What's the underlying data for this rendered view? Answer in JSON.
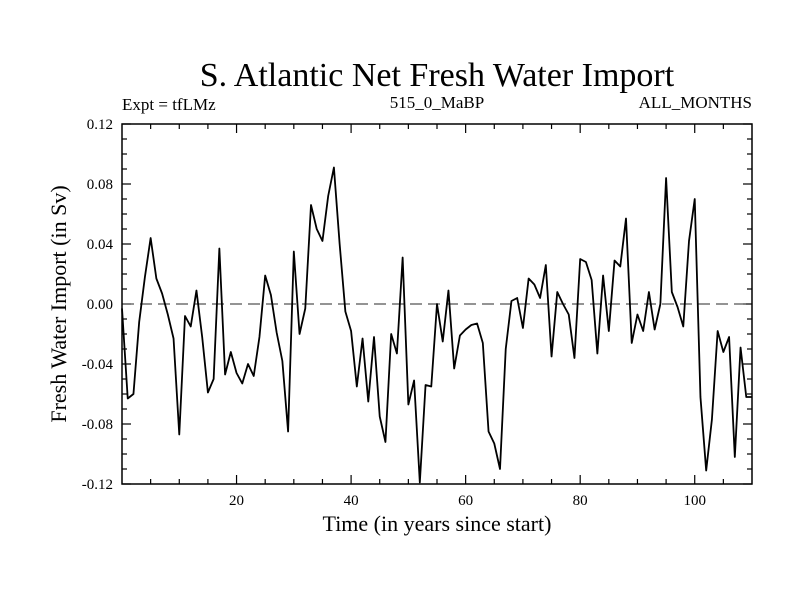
{
  "chart_data": {
    "type": "line",
    "title": "S. Atlantic Net Fresh Water Import",
    "subtitle_left": "Expt = tfLMz",
    "subtitle_center": "515_0_MaBP",
    "subtitle_right": "ALL_MONTHS",
    "xlabel": "Time (in years since start)",
    "ylabel": "Fresh Water Import (in Sv)",
    "xlim": [
      0,
      110
    ],
    "ylim": [
      -0.12,
      0.12
    ],
    "xticks": [
      20,
      40,
      60,
      80,
      100
    ],
    "xtick_labels": [
      "20",
      "40",
      "60",
      "80",
      "100"
    ],
    "yticks": [
      -0.12,
      -0.08,
      -0.04,
      0.0,
      0.04,
      0.08,
      0.12
    ],
    "ytick_labels": [
      "-0.12",
      "-0.08",
      "-0.04",
      "0.00",
      "0.04",
      "0.08",
      "0.12"
    ],
    "reference_line": 0.0,
    "series": [
      {
        "name": "Fresh Water Import",
        "x": [
          0,
          1,
          2,
          3,
          4,
          5,
          6,
          7,
          8,
          9,
          10,
          11,
          12,
          13,
          14,
          15,
          16,
          17,
          18,
          19,
          20,
          21,
          22,
          23,
          24,
          25,
          26,
          27,
          28,
          29,
          30,
          31,
          32,
          33,
          34,
          35,
          36,
          37,
          38,
          39,
          40,
          41,
          42,
          43,
          44,
          45,
          46,
          47,
          48,
          49,
          50,
          51,
          52,
          53,
          54,
          55,
          56,
          57,
          58,
          59,
          60,
          61,
          62,
          63,
          64,
          65,
          66,
          67,
          68,
          69,
          70,
          71,
          72,
          73,
          74,
          75,
          76,
          77,
          78,
          79,
          80,
          81,
          82,
          83,
          84,
          85,
          86,
          87,
          88,
          89,
          90,
          91,
          92,
          93,
          94,
          95,
          96,
          97,
          98,
          99,
          100,
          101,
          102,
          103,
          104,
          105,
          106,
          107,
          108,
          109,
          110
        ],
        "values": [
          -0.003,
          -0.063,
          -0.06,
          -0.012,
          0.018,
          0.044,
          0.017,
          0.007,
          -0.007,
          -0.023,
          -0.087,
          -0.008,
          -0.015,
          0.009,
          -0.022,
          -0.059,
          -0.05,
          0.037,
          -0.047,
          -0.032,
          -0.046,
          -0.053,
          -0.04,
          -0.048,
          -0.022,
          0.019,
          0.006,
          -0.019,
          -0.038,
          -0.085,
          0.035,
          -0.02,
          -0.003,
          0.066,
          0.05,
          0.042,
          0.072,
          0.091,
          0.04,
          -0.005,
          -0.018,
          -0.055,
          -0.023,
          -0.065,
          -0.022,
          -0.075,
          -0.092,
          -0.02,
          -0.033,
          0.031,
          -0.067,
          -0.051,
          -0.119,
          -0.054,
          -0.055,
          0.0,
          -0.025,
          0.009,
          -0.043,
          -0.021,
          -0.017,
          -0.014,
          -0.013,
          -0.026,
          -0.085,
          -0.093,
          -0.11,
          -0.03,
          0.002,
          0.004,
          -0.016,
          0.017,
          0.013,
          0.004,
          0.026,
          -0.035,
          0.008,
          0.0,
          -0.007,
          -0.036,
          0.03,
          0.028,
          0.016,
          -0.033,
          0.019,
          -0.018,
          0.029,
          0.025,
          0.057,
          -0.026,
          -0.007,
          -0.018,
          0.008,
          -0.017,
          0.0,
          0.084,
          0.008,
          -0.002,
          -0.015,
          0.042,
          0.07,
          -0.062,
          -0.111,
          -0.077,
          -0.018,
          -0.032,
          -0.022,
          -0.102,
          -0.029,
          -0.062,
          -0.062
        ]
      }
    ]
  }
}
